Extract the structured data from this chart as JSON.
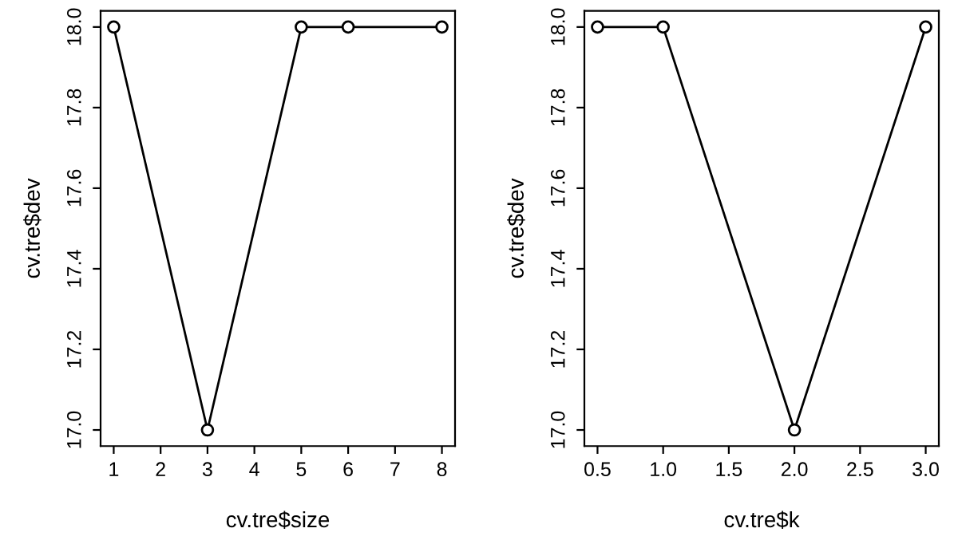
{
  "chart_data": [
    {
      "type": "line",
      "xlabel": "cv.tre$size",
      "ylabel": "cv.tre$dev",
      "x": [
        1,
        3,
        5,
        6,
        8
      ],
      "series": [
        {
          "color": "#000000",
          "values": [
            18,
            17,
            18,
            18,
            18
          ]
        }
      ],
      "xlim": [
        0.72,
        8.28
      ],
      "ylim": [
        16.96,
        18.04
      ],
      "xticks": [
        1,
        2,
        3,
        4,
        5,
        6,
        7,
        8
      ],
      "yticks": [
        {
          "value": 17,
          "label": "17.0"
        },
        {
          "value": 17.2,
          "label": "17.2"
        },
        {
          "value": 17.4,
          "label": "17.4"
        },
        {
          "value": 17.6,
          "label": "17.6"
        },
        {
          "value": 17.8,
          "label": "17.8"
        },
        {
          "value": 18,
          "label": "18.0"
        }
      ],
      "marker": "circle",
      "line_style": "solid",
      "grid": false,
      "legend": false
    },
    {
      "type": "line",
      "xlabel": "cv.tre$k",
      "ylabel": "cv.tre$dev",
      "x": [
        0.5,
        1,
        2,
        3
      ],
      "series": [
        {
          "color": "#000000",
          "values": [
            18,
            18,
            17,
            18
          ]
        }
      ],
      "xlim": [
        0.4,
        3.1
      ],
      "ylim": [
        16.96,
        18.04
      ],
      "xticks": [
        0.5,
        {
          "value": 1,
          "label": "1.0"
        },
        1.5,
        {
          "value": 2,
          "label": "2.0"
        },
        2.5,
        {
          "value": 3,
          "label": "3.0"
        }
      ],
      "yticks": [
        {
          "value": 17,
          "label": "17.0"
        },
        {
          "value": 17.2,
          "label": "17.2"
        },
        {
          "value": 17.4,
          "label": "17.4"
        },
        {
          "value": 17.6,
          "label": "17.6"
        },
        {
          "value": 17.8,
          "label": "17.8"
        },
        {
          "value": 18,
          "label": "18.0"
        }
      ],
      "marker": "circle",
      "line_style": "solid",
      "grid": false,
      "legend": false
    }
  ]
}
